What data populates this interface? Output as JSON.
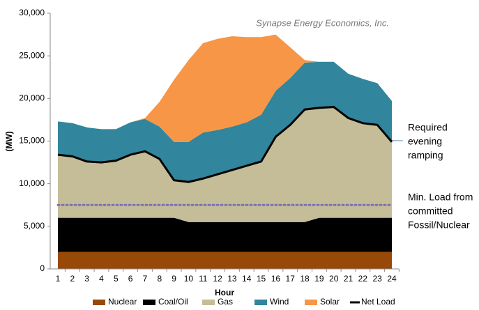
{
  "chart_data": {
    "type": "stacked-area",
    "source": "Synapse Energy Economics, Inc.",
    "ylabel": "(MW)",
    "xlabel": "Hour",
    "categories": [
      "1",
      "2",
      "3",
      "4",
      "5",
      "6",
      "7",
      "8",
      "9",
      "10",
      "11",
      "12",
      "13",
      "14",
      "15",
      "16",
      "17",
      "18",
      "19",
      "20",
      "21",
      "22",
      "23",
      "24"
    ],
    "ylim": [
      0,
      30000
    ],
    "yticks": [
      0,
      {
        "value": 5000,
        "label": "5,000"
      },
      {
        "value": 10000,
        "label": "10,000"
      },
      {
        "value": 15000,
        "label": "15,000"
      },
      {
        "value": 20000,
        "label": "20,000"
      },
      {
        "value": 25000,
        "label": "25,000"
      },
      {
        "value": 30000,
        "label": "30,000"
      }
    ],
    "series": [
      {
        "name": "Nuclear",
        "color": "#984807",
        "values": [
          2000,
          2000,
          2000,
          2000,
          2000,
          2000,
          2000,
          2000,
          2000,
          2000,
          2000,
          2000,
          2000,
          2000,
          2000,
          2000,
          2000,
          2000,
          2000,
          2000,
          2000,
          2000,
          2000,
          2000
        ]
      },
      {
        "name": "Coal/Oil",
        "color": "#000000",
        "values": [
          4000,
          4000,
          4000,
          4000,
          4000,
          4000,
          4000,
          4000,
          4000,
          3500,
          3500,
          3500,
          3500,
          3500,
          3500,
          3500,
          3500,
          3500,
          4000,
          4000,
          4000,
          4000,
          4000,
          4000
        ]
      },
      {
        "name": "Gas",
        "color": "#c4bd97",
        "values": [
          7400,
          7200,
          6600,
          6500,
          6700,
          7400,
          7800,
          6900,
          4400,
          4700,
          5100,
          5600,
          6100,
          6600,
          7100,
          10000,
          11400,
          13200,
          12900,
          13000,
          11700,
          11100,
          10900,
          8900
        ]
      },
      {
        "name": "Wind",
        "color": "#31859c",
        "values": [
          3900,
          3900,
          4000,
          3900,
          3700,
          3800,
          3800,
          3800,
          4500,
          4700,
          5400,
          5200,
          5100,
          5100,
          5500,
          5400,
          5500,
          5500,
          5400,
          5300,
          5200,
          5200,
          4900,
          4800
        ]
      },
      {
        "name": "Solar",
        "color": "#f79646",
        "values": [
          0,
          0,
          0,
          0,
          0,
          0,
          100,
          2900,
          7300,
          9600,
          10500,
          10700,
          10600,
          10000,
          9100,
          6600,
          3600,
          300,
          0,
          0,
          0,
          0,
          0,
          0
        ]
      }
    ],
    "line_series": {
      "name": "Net Load",
      "color": "#000000",
      "values": [
        13400,
        13200,
        12600,
        12500,
        12700,
        13400,
        13800,
        12900,
        10400,
        10200,
        10600,
        11100,
        11600,
        12100,
        12600,
        15500,
        16900,
        18700,
        18900,
        19000,
        17700,
        17100,
        16900,
        14900
      ]
    },
    "min_load_line": {
      "value": 7500,
      "color": "#7f6fb3",
      "label": [
        "Min. Load from",
        "committed",
        "Fossil/Nuclear"
      ]
    },
    "ramping_label": [
      "Required",
      "evening",
      "ramping"
    ]
  }
}
